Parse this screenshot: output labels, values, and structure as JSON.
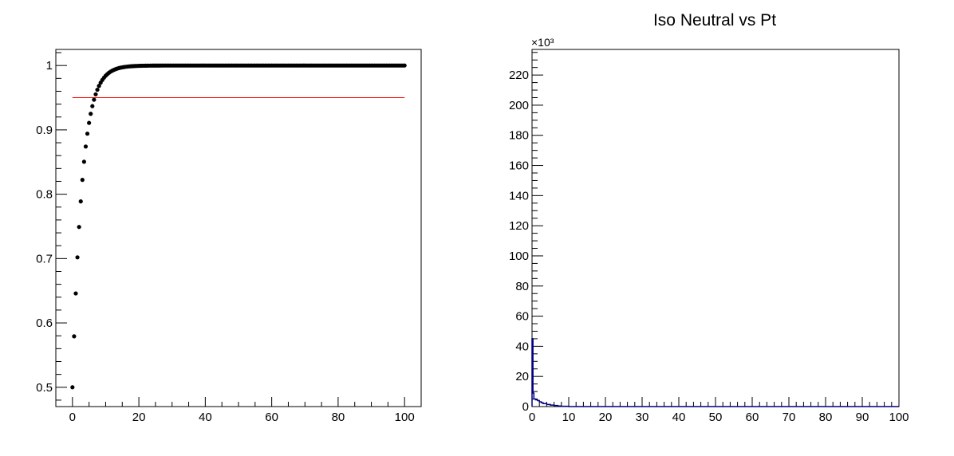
{
  "chart_data": [
    {
      "type": "scatter",
      "title": "",
      "xlabel": "",
      "ylabel": "",
      "xlim": [
        -5,
        105
      ],
      "ylim": [
        0.47,
        1.025
      ],
      "x_ticks": [
        "0",
        "20",
        "40",
        "60",
        "80",
        "100"
      ],
      "y_ticks": [
        "0.5",
        "0.6",
        "0.7",
        "0.8",
        "0.9",
        "1"
      ],
      "grid": false,
      "legend": "none",
      "series": [
        {
          "marker": "filled-circle",
          "color": "#000000",
          "curve": "1 - 0.5*exp(-x/2.9) for x = 0..100 step 0.5",
          "x_start": 0,
          "x_end": 100,
          "x_step": 0.5,
          "y_at_0": 0.5,
          "asymptote": 1.0,
          "tau": 2.9
        }
      ],
      "reference_line": {
        "y": 0.95,
        "x_from": 0,
        "x_to": 100,
        "color": "#ff0000"
      }
    },
    {
      "type": "bar",
      "style": "histogram",
      "title": "Iso Neutral vs Pt",
      "xlabel": "",
      "ylabel": "",
      "xlim": [
        0,
        100
      ],
      "ylim": [
        0,
        237
      ],
      "y_multiplier": "×10³",
      "x_ticks": [
        "0",
        "10",
        "20",
        "30",
        "40",
        "50",
        "60",
        "70",
        "80",
        "90",
        "100"
      ],
      "y_ticks": [
        "0",
        "20",
        "40",
        "60",
        "80",
        "100",
        "120",
        "140",
        "160",
        "180",
        "200",
        "220"
      ],
      "line_color": "#000080",
      "bins": [
        {
          "x0": 0,
          "x1": 0.25,
          "y": 45
        },
        {
          "x0": 0.25,
          "x1": 0.5,
          "y": 9
        },
        {
          "x0": 0.5,
          "x1": 1.0,
          "y": 5
        },
        {
          "x0": 1.0,
          "x1": 1.5,
          "y": 4.5
        },
        {
          "x0": 1.5,
          "x1": 2.0,
          "y": 4
        },
        {
          "x0": 2.0,
          "x1": 2.5,
          "y": 3.2
        },
        {
          "x0": 2.5,
          "x1": 3.0,
          "y": 2.6
        },
        {
          "x0": 3.0,
          "x1": 4.0,
          "y": 2
        },
        {
          "x0": 4.0,
          "x1": 5.0,
          "y": 1.4
        },
        {
          "x0": 5.0,
          "x1": 6.0,
          "y": 1.0
        },
        {
          "x0": 6.0,
          "x1": 7.0,
          "y": 0.7
        },
        {
          "x0": 7.0,
          "x1": 8.0,
          "y": 0.4
        },
        {
          "x0": 8.0,
          "x1": 10.0,
          "y": 0.2
        },
        {
          "x0": 10.0,
          "x1": 100.0,
          "y": 0
        }
      ]
    }
  ]
}
